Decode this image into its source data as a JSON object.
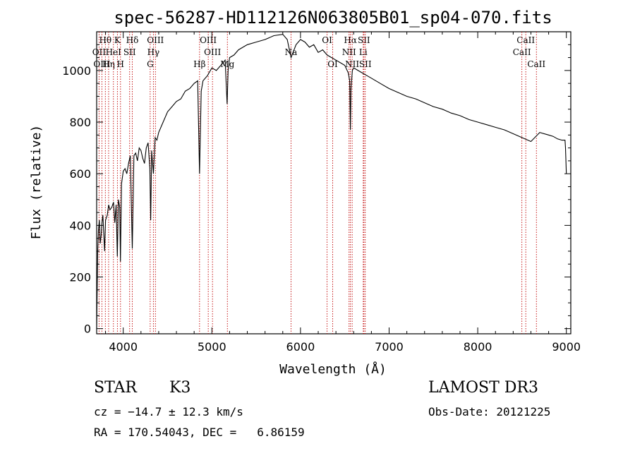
{
  "colors": {
    "axes": "#000000",
    "spectrum": "#000000",
    "lines": "#c00000",
    "background": "#ffffff"
  },
  "chart_data": {
    "type": "line",
    "title": "spec-56287-HD112126N063805B01_sp04-070.fits",
    "xlabel": "Wavelength (Å)",
    "ylabel": "Flux (relative)",
    "xlim": [
      3700,
      9050
    ],
    "ylim": [
      -20,
      1150
    ],
    "xticks": [
      4000,
      5000,
      6000,
      7000,
      8000,
      9000
    ],
    "yticks": [
      0,
      200,
      400,
      600,
      800,
      1000
    ],
    "series": [
      {
        "name": "flux",
        "x": [
          3700,
          3705,
          3712,
          3720,
          3730,
          3740,
          3750,
          3760,
          3770,
          3780,
          3790,
          3800,
          3810,
          3820,
          3835,
          3850,
          3870,
          3890,
          3905,
          3920,
          3933,
          3945,
          3960,
          3968,
          3980,
          4000,
          4020,
          4040,
          4060,
          4080,
          4102,
          4120,
          4140,
          4160,
          4180,
          4200,
          4220,
          4240,
          4260,
          4280,
          4300,
          4310,
          4320,
          4340,
          4360,
          4380,
          4400,
          4450,
          4500,
          4550,
          4600,
          4650,
          4700,
          4750,
          4800,
          4840,
          4861,
          4880,
          4900,
          4950,
          5000,
          5050,
          5100,
          5150,
          5172,
          5183,
          5200,
          5250,
          5300,
          5400,
          5500,
          5600,
          5700,
          5800,
          5850,
          5893,
          5950,
          6000,
          6050,
          6100,
          6150,
          6200,
          6250,
          6300,
          6350,
          6400,
          6450,
          6500,
          6540,
          6555,
          6563,
          6570,
          6585,
          6600,
          6650,
          6700,
          6750,
          6800,
          6900,
          7000,
          7100,
          7200,
          7300,
          7400,
          7500,
          7600,
          7700,
          7800,
          7900,
          8000,
          8100,
          8200,
          8300,
          8400,
          8500,
          8600,
          8700,
          8800,
          8850,
          8900,
          8950,
          8985,
          8990,
          9000
        ],
        "y": [
          0,
          120,
          300,
          380,
          420,
          330,
          360,
          410,
          440,
          370,
          300,
          420,
          430,
          440,
          480,
          460,
          470,
          490,
          410,
          480,
          280,
          500,
          470,
          260,
          560,
          610,
          620,
          600,
          640,
          670,
          310,
          670,
          680,
          650,
          700,
          690,
          660,
          640,
          700,
          720,
          620,
          420,
          690,
          600,
          740,
          730,
          760,
          800,
          840,
          860,
          880,
          890,
          920,
          930,
          950,
          960,
          600,
          920,
          960,
          980,
          1010,
          1000,
          1020,
          1040,
          870,
          1000,
          1050,
          1060,
          1080,
          1100,
          1110,
          1120,
          1135,
          1140,
          1120,
          1050,
          1100,
          1120,
          1110,
          1090,
          1100,
          1070,
          1080,
          1060,
          1050,
          1040,
          1030,
          1020,
          990,
          960,
          770,
          930,
          1000,
          1010,
          1000,
          990,
          980,
          970,
          950,
          930,
          915,
          900,
          890,
          875,
          860,
          850,
          835,
          825,
          810,
          800,
          790,
          780,
          770,
          755,
          740,
          725,
          760,
          750,
          745,
          735,
          730,
          730,
          700,
          600
        ]
      }
    ],
    "line_markers": [
      {
        "name": "Hθ",
        "wave": 3798,
        "row": 0
      },
      {
        "name": "OII",
        "wave": 3727,
        "row": 1
      },
      {
        "name": "OIII",
        "wave": 3759,
        "row": 2
      },
      {
        "name": "Hη",
        "wave": 3835,
        "row": 2
      },
      {
        "name": "K",
        "wave": 3934,
        "row": 0
      },
      {
        "name": "HeI",
        "wave": 3889,
        "row": 1
      },
      {
        "name": "SII",
        "wave": 4072,
        "row": 1
      },
      {
        "name": "H",
        "wave": 3969,
        "row": 2
      },
      {
        "name": "Hδ",
        "wave": 4102,
        "row": 0
      },
      {
        "name": "OIII",
        "wave": 4363,
        "row": 0
      },
      {
        "name": "Hγ",
        "wave": 4340,
        "row": 1
      },
      {
        "name": "G",
        "wave": 4304,
        "row": 2
      },
      {
        "name": "OIII",
        "wave": 4959,
        "row": 0
      },
      {
        "name": "OIII",
        "wave": 5007,
        "row": 1
      },
      {
        "name": "Hβ",
        "wave": 4861,
        "row": 2
      },
      {
        "name": "Mg",
        "wave": 5175,
        "row": 2
      },
      {
        "name": "Na",
        "wave": 5893,
        "row": 1
      },
      {
        "name": "OI",
        "wave": 6300,
        "row": 0
      },
      {
        "name": "OI",
        "wave": 6363,
        "row": 2
      },
      {
        "name": "Hα",
        "wave": 6563,
        "row": 0
      },
      {
        "name": "NII",
        "wave": 6548,
        "row": 1
      },
      {
        "name": "NII",
        "wave": 6583,
        "row": 2
      },
      {
        "name": "SII",
        "wave": 6716,
        "row": 0
      },
      {
        "name": "Li",
        "wave": 6708,
        "row": 1
      },
      {
        "name": "SII",
        "wave": 6731,
        "row": 2
      },
      {
        "name": "CaII",
        "wave": 8542,
        "row": 0
      },
      {
        "name": "CaII",
        "wave": 8498,
        "row": 1
      },
      {
        "name": "CaII",
        "wave": 8662,
        "row": 2
      }
    ]
  },
  "info": {
    "object_class": "STAR",
    "subclass": "K3",
    "survey": "LAMOST DR3",
    "redshift_text": "cz = −14.7 ± 12.3 km/s",
    "obs_date_text": "Obs-Date: 20121225",
    "coords_text": "RA = 170.54043, DEC =   6.86159"
  }
}
